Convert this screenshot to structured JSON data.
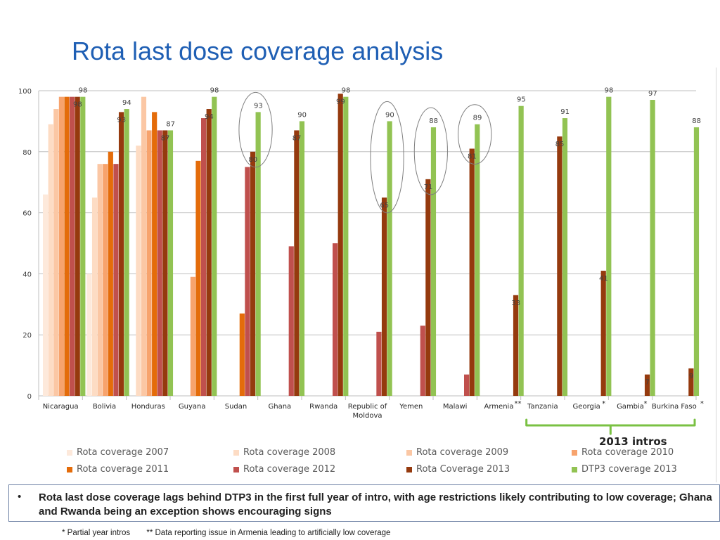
{
  "slide": {
    "title": "Rota last dose coverage analysis",
    "bullet_marker": "•",
    "bullet_text": "Rota last dose coverage lags behind DTP3 in the first full year of intro, with age restrictions likely contributing to low coverage; Ghana and Rwanda being an exception shows encouraging signs",
    "footnote_1": "* Partial year intros",
    "footnote_2": "** Data reporting issue in Armenia leading to artificially low coverage",
    "bracket_label": "2013 intros"
  },
  "colors": {
    "title": "#1f5fb4",
    "ellipse": "#7f7f7f",
    "bracket": "#7ac143"
  },
  "chart_data": {
    "type": "bar",
    "title": "",
    "xlabel": "",
    "ylabel": "",
    "ylim": [
      0,
      100
    ],
    "yticks": [
      0,
      20,
      40,
      60,
      80,
      100
    ],
    "grid": true,
    "legend_position": "bottom",
    "categories": [
      "Nicaragua",
      "Bolivia",
      "Honduras",
      "Guyana",
      "Sudan",
      "Ghana",
      "Rwanda",
      "Republic of\nMoldova",
      "Yemen",
      "Malawi",
      "Armenia",
      "Tanzania",
      "Georgia",
      "Gambia",
      "Burkina Faso"
    ],
    "category_marks": [
      "",
      "",
      "",
      "",
      "",
      "",
      "",
      "",
      "",
      "",
      "**",
      "",
      "*",
      "*",
      "*"
    ],
    "series": [
      {
        "name": "Rota coverage 2007",
        "color": "#fde9db",
        "values": [
          66,
          40,
          null,
          null,
          null,
          null,
          null,
          null,
          null,
          null,
          null,
          null,
          null,
          null,
          null
        ]
      },
      {
        "name": "Rota coverage 2008",
        "color": "#fddcc4",
        "values": [
          89,
          65,
          82,
          null,
          null,
          null,
          null,
          null,
          null,
          null,
          null,
          null,
          null,
          null,
          null
        ]
      },
      {
        "name": "Rota coverage 2009",
        "color": "#fbc7a4",
        "values": [
          94,
          76,
          98,
          null,
          null,
          null,
          null,
          null,
          null,
          null,
          null,
          null,
          null,
          null,
          null
        ]
      },
      {
        "name": "Rota coverage 2010",
        "color": "#f7a36d",
        "values": [
          98,
          76,
          87,
          39,
          null,
          null,
          null,
          null,
          null,
          null,
          null,
          null,
          null,
          null,
          null
        ]
      },
      {
        "name": "Rota coverage 2011",
        "color": "#e46c0a",
        "values": [
          98,
          80,
          93,
          77,
          27,
          null,
          null,
          null,
          null,
          null,
          null,
          null,
          null,
          null,
          null
        ]
      },
      {
        "name": "Rota coverage 2012",
        "color": "#c0504d",
        "values": [
          98,
          76,
          87,
          91,
          75,
          49,
          50,
          21,
          23,
          7,
          null,
          null,
          null,
          null,
          null
        ]
      },
      {
        "name": "Rota Coverage 2013",
        "color": "#953a0e",
        "values": [
          98,
          93,
          87,
          94,
          80,
          87,
          99,
          65,
          71,
          81,
          33,
          85,
          41,
          7,
          9
        ]
      },
      {
        "name": "DTP3 coverage 2013",
        "color": "#92c353",
        "values": [
          98,
          94,
          87,
          98,
          93,
          90,
          98,
          90,
          88,
          89,
          95,
          91,
          98,
          97,
          88
        ]
      }
    ],
    "data_labels": [
      {
        "series": "Rota Coverage 2013",
        "category": "Nicaragua",
        "text": "98"
      },
      {
        "series": "Rota Coverage 2013",
        "category": "Bolivia",
        "text": "93"
      },
      {
        "series": "Rota Coverage 2013",
        "category": "Honduras",
        "text": "87"
      },
      {
        "series": "Rota Coverage 2013",
        "category": "Guyana",
        "text": "94"
      },
      {
        "series": "Rota Coverage 2013",
        "category": "Sudan",
        "text": "80"
      },
      {
        "series": "Rota Coverage 2013",
        "category": "Ghana",
        "text": "87"
      },
      {
        "series": "Rota Coverage 2013",
        "category": "Rwanda",
        "text": "99"
      },
      {
        "series": "Rota Coverage 2013",
        "category": "Republic of\nMoldova",
        "text": "65"
      },
      {
        "series": "Rota Coverage 2013",
        "category": "Yemen",
        "text": "71"
      },
      {
        "series": "Rota Coverage 2013",
        "category": "Malawi",
        "text": "81"
      },
      {
        "series": "Rota Coverage 2013",
        "category": "Armenia",
        "text": "33"
      },
      {
        "series": "Rota Coverage 2013",
        "category": "Tanzania",
        "text": "85"
      },
      {
        "series": "Rota Coverage 2013",
        "category": "Georgia",
        "text": "41"
      },
      {
        "series": "Rota Coverage 2013",
        "category": "Gambia",
        "text": "7"
      },
      {
        "series": "Rota Coverage 2013",
        "category": "Burkina Faso",
        "text": "9"
      },
      {
        "series": "DTP3 coverage 2013",
        "category": "Nicaragua",
        "text": "98"
      },
      {
        "series": "DTP3 coverage 2013",
        "category": "Bolivia",
        "text": "94"
      },
      {
        "series": "DTP3 coverage 2013",
        "category": "Honduras",
        "text": "87"
      },
      {
        "series": "DTP3 coverage 2013",
        "category": "Guyana",
        "text": "98"
      },
      {
        "series": "DTP3 coverage 2013",
        "category": "Sudan",
        "text": "93"
      },
      {
        "series": "DTP3 coverage 2013",
        "category": "Ghana",
        "text": "90"
      },
      {
        "series": "DTP3 coverage 2013",
        "category": "Rwanda",
        "text": "98"
      },
      {
        "series": "DTP3 coverage 2013",
        "category": "Republic of\nMoldova",
        "text": "90"
      },
      {
        "series": "DTP3 coverage 2013",
        "category": "Yemen",
        "text": "88"
      },
      {
        "series": "DTP3 coverage 2013",
        "category": "Malawi",
        "text": "89"
      },
      {
        "series": "DTP3 coverage 2013",
        "category": "Armenia",
        "text": "95"
      },
      {
        "series": "DTP3 coverage 2013",
        "category": "Tanzania",
        "text": "91"
      },
      {
        "series": "DTP3 coverage 2013",
        "category": "Georgia",
        "text": "98"
      },
      {
        "series": "DTP3 coverage 2013",
        "category": "Gambia",
        "text": "97"
      },
      {
        "series": "DTP3 coverage 2013",
        "category": "Burkina Faso",
        "text": "88"
      }
    ],
    "highlighted_categories": [
      "Sudan",
      "Republic of\nMoldova",
      "Yemen",
      "Malawi"
    ],
    "bracketed_categories": [
      "Tanzania",
      "Georgia",
      "Gambia",
      "Burkina Faso"
    ]
  }
}
